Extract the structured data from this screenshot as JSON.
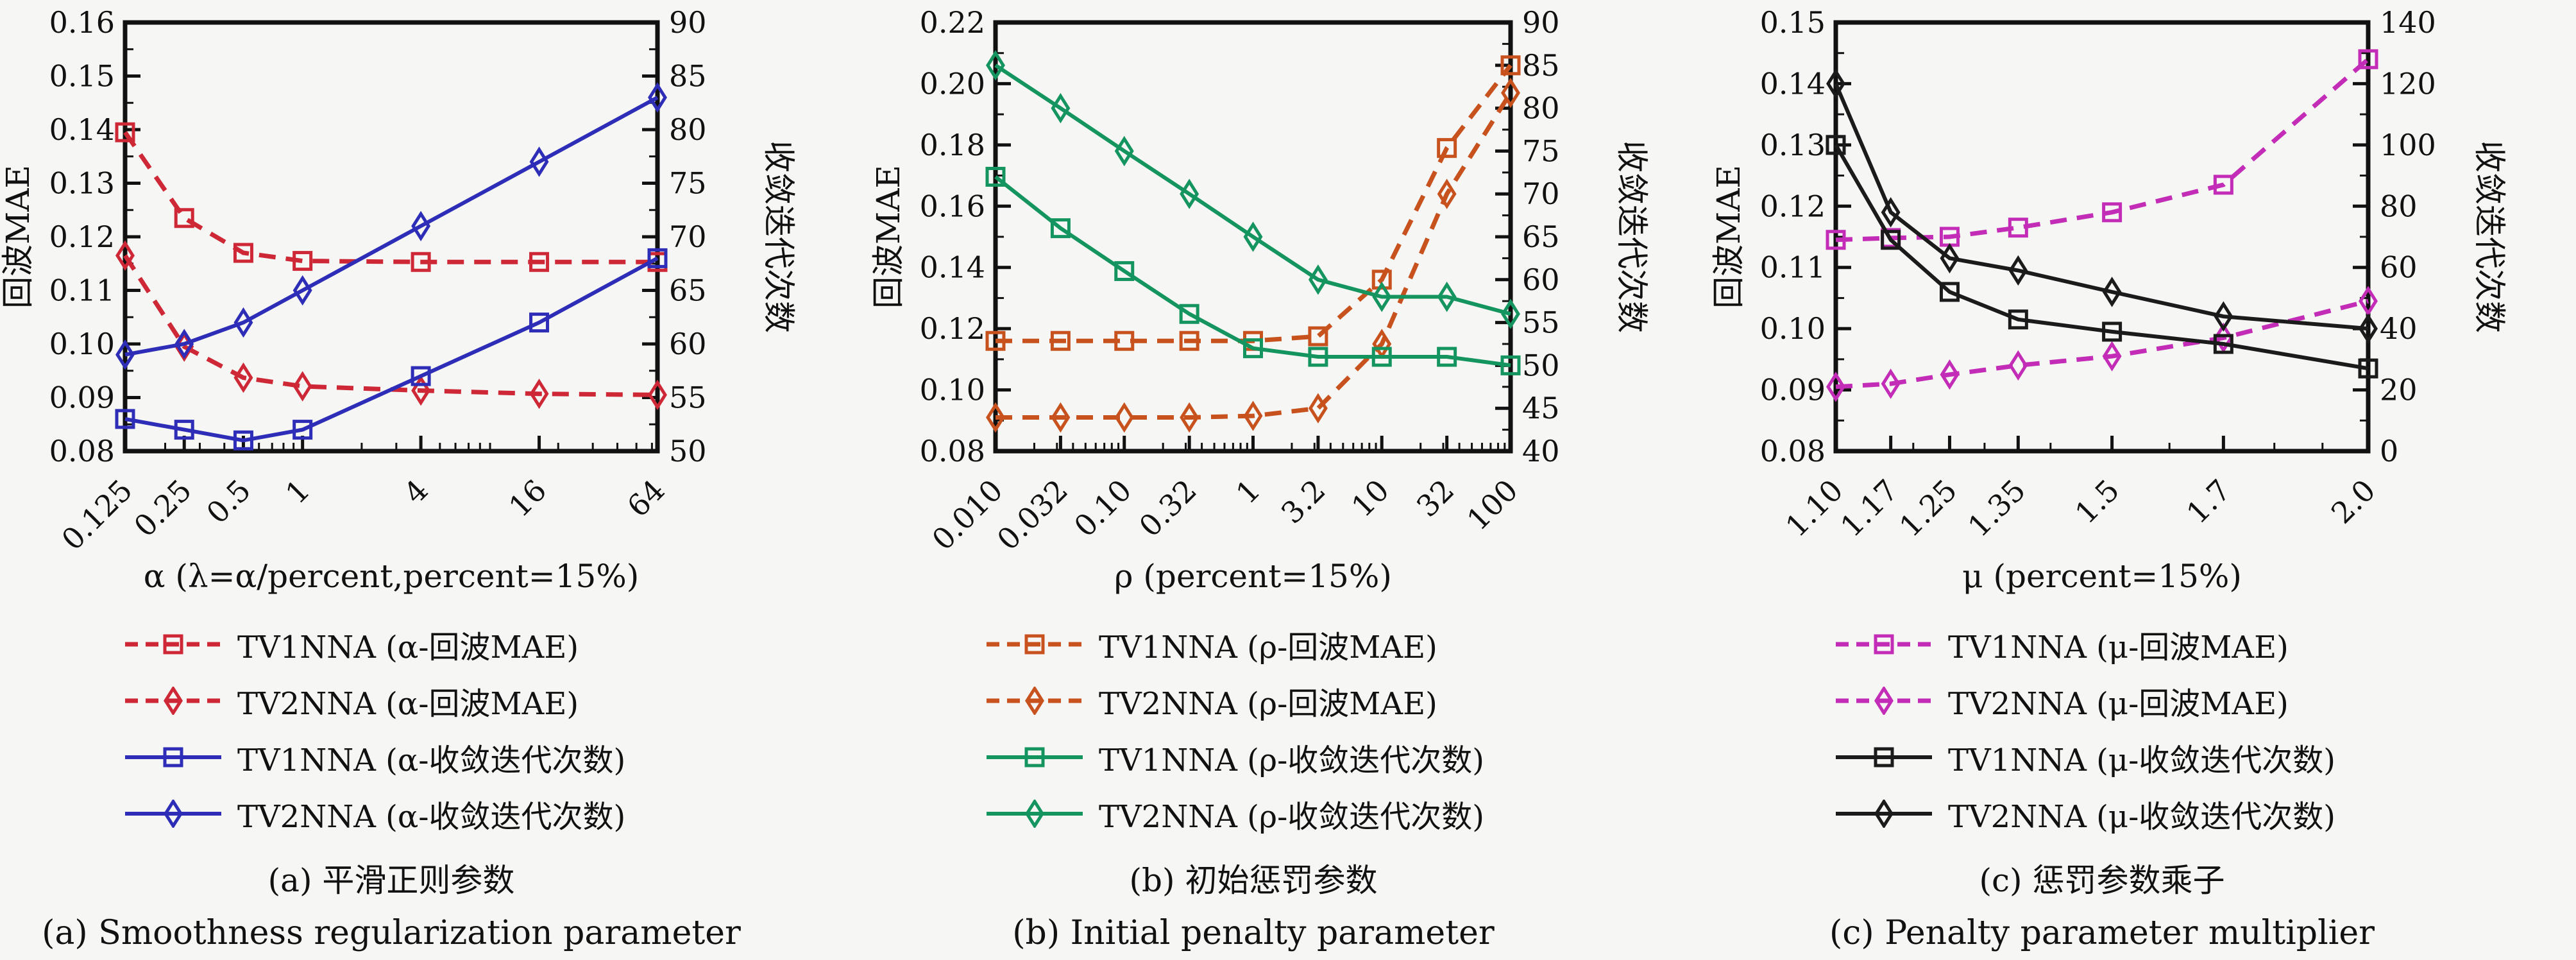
{
  "figure": {
    "background": "#f6f6f4",
    "text_color": "#111111"
  },
  "chart_data": [
    {
      "type": "line",
      "id": "a",
      "x_label": "α (λ=α/percent,percent=15%)",
      "x_scale": "log",
      "x": [
        0.125,
        0.25,
        0.5,
        1,
        4,
        16,
        64
      ],
      "x_tick_labels": [
        "0.125",
        "0.25",
        "0.5",
        "1",
        "4",
        "16",
        "64"
      ],
      "x_minor_ticks": [
        0.2,
        0.3,
        0.4,
        0.6,
        0.7,
        0.8,
        0.9,
        2,
        3,
        5,
        6,
        7,
        8,
        9,
        20,
        30,
        40,
        50,
        60
      ],
      "ylabel_left": "回波MAE",
      "ylabel_right": "收敛迭代次数",
      "left_axis": {
        "min": 0.08,
        "max": 0.16,
        "tick_values": [
          0.08,
          0.09,
          0.1,
          0.11,
          0.12,
          0.13,
          0.14,
          0.15,
          0.16
        ],
        "ticks": [
          "0.08",
          "0.09",
          "0.10",
          "0.11",
          "0.12",
          "0.13",
          "0.14",
          "0.15",
          "0.16"
        ],
        "minor": [
          0.085,
          0.095,
          0.105,
          0.115,
          0.125,
          0.135,
          0.145,
          0.155
        ]
      },
      "right_axis": {
        "min": 50,
        "max": 90,
        "tick_values": [
          50,
          55,
          60,
          65,
          70,
          75,
          80,
          85,
          90
        ],
        "ticks": [
          "50",
          "55",
          "60",
          "65",
          "70",
          "75",
          "80",
          "85",
          "90"
        ],
        "minor": [
          52.5,
          57.5,
          62.5,
          67.5,
          72.5,
          77.5,
          82.5,
          87.5
        ]
      },
      "series": [
        {
          "name": "TV1NNA (α-回波MAE)",
          "axis": "left",
          "line": "dashed",
          "marker": "square",
          "color": "#ce2836",
          "values": [
            0.1395,
            0.1235,
            0.117,
            0.1155,
            0.1153,
            0.1153,
            0.1153
          ]
        },
        {
          "name": "TV2NNA (α-回波MAE)",
          "axis": "left",
          "line": "dashed",
          "marker": "diamond",
          "color": "#ce2836",
          "values": [
            0.1165,
            0.0995,
            0.0937,
            0.0921,
            0.0913,
            0.0907,
            0.0905
          ]
        },
        {
          "name": "TV1NNA (α-收敛迭代次数)",
          "axis": "right",
          "line": "solid",
          "marker": "square",
          "color": "#2d2db8",
          "values": [
            53,
            52,
            51,
            52,
            57,
            62,
            68
          ]
        },
        {
          "name": "TV2NNA (α-收敛迭代次数)",
          "axis": "right",
          "line": "solid",
          "marker": "diamond",
          "color": "#2d2db8",
          "values": [
            59,
            60,
            62,
            65,
            71,
            77,
            83
          ]
        }
      ],
      "caption_zh": "(a) 平滑正则参数",
      "caption_en": "(a) Smoothness regularization parameter"
    },
    {
      "type": "line",
      "id": "b",
      "x_label": "ρ (percent=15%)",
      "x_scale": "log",
      "x": [
        0.01,
        0.032,
        0.1,
        0.32,
        1,
        3.2,
        10,
        32,
        100
      ],
      "x_tick_labels": [
        "0.010",
        "0.032",
        "0.10",
        "0.32",
        "1",
        "3.2",
        "10",
        "32",
        "100"
      ],
      "x_minor_ticks": [
        0.02,
        0.03,
        0.04,
        0.05,
        0.06,
        0.07,
        0.08,
        0.09,
        0.2,
        0.3,
        0.4,
        0.5,
        0.6,
        0.7,
        0.8,
        0.9,
        2,
        3,
        4,
        5,
        6,
        7,
        8,
        9,
        20,
        30,
        40,
        50,
        60,
        70,
        80,
        90
      ],
      "ylabel_left": "回波MAE",
      "ylabel_right": "收敛迭代次数",
      "left_axis": {
        "min": 0.08,
        "max": 0.22,
        "tick_values": [
          0.08,
          0.1,
          0.12,
          0.14,
          0.16,
          0.18,
          0.2,
          0.22
        ],
        "ticks": [
          "0.08",
          "0.10",
          "0.12",
          "0.14",
          "0.16",
          "0.18",
          "0.20",
          "0.22"
        ],
        "minor": [
          0.09,
          0.11,
          0.13,
          0.15,
          0.17,
          0.19,
          0.21
        ]
      },
      "right_axis": {
        "min": 40,
        "max": 90,
        "tick_values": [
          40,
          45,
          50,
          55,
          60,
          65,
          70,
          75,
          80,
          85,
          90
        ],
        "ticks": [
          "40",
          "45",
          "50",
          "55",
          "60",
          "65",
          "70",
          "75",
          "80",
          "85",
          "90"
        ],
        "minor": [
          42.5,
          47.5,
          52.5,
          57.5,
          62.5,
          67.5,
          72.5,
          77.5,
          82.5,
          87.5
        ]
      },
      "series": [
        {
          "name": "TV1NNA (ρ-回波MAE)",
          "axis": "left",
          "line": "dashed",
          "marker": "square",
          "color": "#c8521e",
          "values": [
            0.116,
            0.116,
            0.116,
            0.116,
            0.116,
            0.1175,
            0.136,
            0.179,
            0.206
          ]
        },
        {
          "name": "TV2NNA (ρ-回波MAE)",
          "axis": "left",
          "line": "dashed",
          "marker": "diamond",
          "color": "#c8521e",
          "values": [
            0.091,
            0.091,
            0.091,
            0.091,
            0.0915,
            0.094,
            0.115,
            0.164,
            0.197
          ]
        },
        {
          "name": "TV1NNA (ρ-收敛迭代次数)",
          "axis": "right",
          "line": "solid",
          "marker": "square",
          "color": "#14945e",
          "values": [
            72,
            66,
            61,
            56,
            52,
            51,
            51,
            51,
            50
          ]
        },
        {
          "name": "TV2NNA (ρ-收敛迭代次数)",
          "axis": "right",
          "line": "solid",
          "marker": "diamond",
          "color": "#14945e",
          "values": [
            85,
            80,
            75,
            70,
            65,
            60,
            58,
            58,
            56
          ]
        }
      ],
      "caption_zh": "(b) 初始惩罚参数",
      "caption_en": "(b) Initial penalty parameter"
    },
    {
      "type": "line",
      "id": "c",
      "x_label": "μ (percent=15%)",
      "x_scale": "log",
      "x": [
        1.1,
        1.17,
        1.25,
        1.35,
        1.5,
        1.7,
        2.0
      ],
      "x_tick_labels": [
        "1.10",
        "1.17",
        "1.25",
        "1.35",
        "1.5",
        "1.7",
        "2.0"
      ],
      "x_minor_ticks": [
        1.2,
        1.3,
        1.4,
        1.6,
        1.8,
        1.9
      ],
      "ylabel_left": "回波MAE",
      "ylabel_right": "收敛迭代次数",
      "left_axis": {
        "min": 0.08,
        "max": 0.15,
        "tick_values": [
          0.08,
          0.09,
          0.1,
          0.11,
          0.12,
          0.13,
          0.14,
          0.15
        ],
        "ticks": [
          "0.08",
          "0.09",
          "0.10",
          "0.11",
          "0.12",
          "0.13",
          "0.14",
          "0.15"
        ],
        "minor": [
          0.085,
          0.095,
          0.105,
          0.115,
          0.125,
          0.135,
          0.145
        ]
      },
      "right_axis": {
        "min": 0,
        "max": 140,
        "tick_values": [
          0,
          20,
          40,
          60,
          80,
          100,
          120,
          140
        ],
        "ticks": [
          "0",
          "20",
          "40",
          "60",
          "80",
          "100",
          "120",
          "140"
        ],
        "minor": [
          10,
          30,
          50,
          70,
          90,
          110,
          130
        ]
      },
      "series": [
        {
          "name": "TV1NNA (μ-回波MAE)",
          "axis": "left",
          "line": "dashed",
          "marker": "square",
          "color": "#c32cb6",
          "values": [
            0.1145,
            0.1148,
            0.115,
            0.1165,
            0.119,
            0.1235,
            0.144
          ]
        },
        {
          "name": "TV2NNA (μ-回波MAE)",
          "axis": "left",
          "line": "dashed",
          "marker": "diamond",
          "color": "#c32cb6",
          "values": [
            0.0905,
            0.091,
            0.0925,
            0.094,
            0.0955,
            0.0985,
            0.1045
          ]
        },
        {
          "name": "TV1NNA (μ-收敛迭代次数)",
          "axis": "right",
          "line": "solid",
          "marker": "square",
          "color": "#1b1b1b",
          "values": [
            100,
            69,
            52,
            43,
            39,
            35,
            27
          ]
        },
        {
          "name": "TV2NNA (μ-收敛迭代次数)",
          "axis": "right",
          "line": "solid",
          "marker": "diamond",
          "color": "#1b1b1b",
          "values": [
            120,
            78,
            63,
            59,
            52,
            44,
            40
          ]
        }
      ],
      "caption_zh": "(c) 惩罚参数乘子",
      "caption_en": "(c) Penalty parameter multiplier"
    }
  ]
}
